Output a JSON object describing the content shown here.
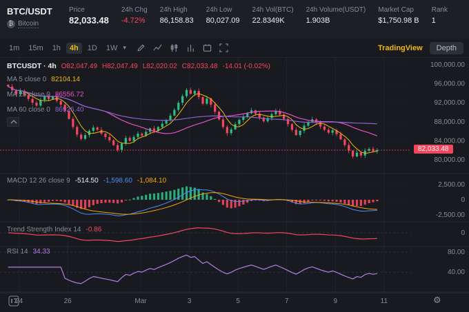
{
  "header": {
    "symbol": "BTC/USDT",
    "coin_name": "Bitcoin",
    "coin_icon": "₿",
    "stats": [
      {
        "label": "Price",
        "value": "82,033.48",
        "type": "price"
      },
      {
        "label": "24h Chg",
        "value": "-4.72%",
        "type": "down"
      },
      {
        "label": "24h High",
        "value": "86,158.83"
      },
      {
        "label": "24h Low",
        "value": "80,027.09"
      },
      {
        "label": "24h Vol(BTC)",
        "value": "22.8349K"
      },
      {
        "label": "24h Volume(USDT)",
        "value": "1.903B"
      },
      {
        "label": "Market Cap",
        "value": "$1,750.98 B"
      },
      {
        "label": "Rank",
        "value": "1"
      }
    ]
  },
  "icons": {
    "caret_down": "▾",
    "gear": "⚙"
  },
  "toolbar": {
    "intervals": [
      {
        "label": "1m",
        "selected": false
      },
      {
        "label": "15m",
        "selected": false
      },
      {
        "label": "1h",
        "selected": false
      },
      {
        "label": "4h",
        "selected": true
      },
      {
        "label": "1D",
        "selected": false
      },
      {
        "label": "1W",
        "selected": false
      }
    ],
    "icon_names": [
      "edit-icon",
      "line-chart-icon",
      "candlestick-chart-icon",
      "bar-chart-icon",
      "calendar-icon",
      "fullscreen-icon"
    ],
    "tabs": [
      {
        "label": "TradingView",
        "selected": true
      },
      {
        "label": "Depth",
        "selected": false
      }
    ]
  },
  "legend": {
    "symbol_tf": "BTCUSDT · 4h",
    "open": "O82,047.49",
    "high": "H82,047.49",
    "low": "L82,020.02",
    "close": "C82,033.48",
    "change": "-14.01 (-0.02%)",
    "ma5_label": "MA 5 close 0",
    "ma5_value": "82104.14",
    "ma25_label": "MA 25 close 0",
    "ma25_value": "86556.72",
    "ma60_label": "MA 60 close 0",
    "ma60_value": "86926.40"
  },
  "panels": {
    "macd": {
      "label": "MACD 12 26 close 9",
      "v1": "-514.50",
      "v2": "-1,598.60",
      "v3": "-1,084.10",
      "ticks": [
        {
          "label": "2,500.00",
          "value": 2500
        },
        {
          "label": "0",
          "value": 0
        },
        {
          "label": "-2,500.00",
          "value": -2500
        }
      ]
    },
    "tsi": {
      "label": "Trend Strength Index 14",
      "value": "-0.86",
      "ticks": [
        {
          "label": "0",
          "value": 0
        }
      ]
    },
    "rsi": {
      "label": "RSI 14",
      "value": "34.33",
      "ticks": [
        {
          "label": "80.00",
          "value": 80
        },
        {
          "label": "40.00",
          "value": 40
        }
      ]
    }
  },
  "price_axis": {
    "ticks": [
      {
        "label": "100,000.00",
        "value": 100000
      },
      {
        "label": "96,000.00",
        "value": 96000
      },
      {
        "label": "92,000.00",
        "value": 92000
      },
      {
        "label": "88,000.00",
        "value": 88000
      },
      {
        "label": "84,000.00",
        "value": 84000
      },
      {
        "label": "80,000.00",
        "value": 80000
      }
    ],
    "current": {
      "label": "82,033.48",
      "value": 82033.48
    }
  },
  "time_axis": {
    "ticks": [
      {
        "label": "24",
        "i": 3
      },
      {
        "label": "26",
        "i": 15
      },
      {
        "label": "Mar",
        "i": 33
      },
      {
        "label": "3",
        "i": 45
      },
      {
        "label": "5",
        "i": 57
      },
      {
        "label": "7",
        "i": 69
      },
      {
        "label": "9",
        "i": 81
      },
      {
        "label": "11",
        "i": 93
      }
    ]
  },
  "chart_data": {
    "type": "candlestick",
    "interval": "4h",
    "last_price": 82033.48,
    "ylim": [
      78800,
      101200
    ],
    "ma_periods": [
      5,
      25,
      60
    ],
    "macd_params": [
      12,
      26,
      9
    ],
    "rsi_period": 14,
    "closes": [
      95400,
      94600,
      93800,
      94500,
      93600,
      92800,
      92000,
      91400,
      92600,
      93400,
      92800,
      93300,
      92400,
      91600,
      90300,
      88600,
      86900,
      85300,
      84400,
      85200,
      86100,
      86800,
      86300,
      85500,
      84800,
      84100,
      83100,
      82100,
      83400,
      84600,
      84000,
      84800,
      85500,
      85100,
      85900,
      86600,
      86100,
      86900,
      87600,
      88400,
      89300,
      90500,
      92000,
      93400,
      94700,
      93900,
      94500,
      93200,
      91800,
      92900,
      91600,
      90100,
      88500,
      86900,
      85600,
      86400,
      87500,
      88400,
      89100,
      89800,
      90400,
      89700,
      88900,
      88100,
      88800,
      89600,
      90300,
      89500,
      88600,
      87500,
      86300,
      85200,
      86100,
      87200,
      88000,
      88500,
      87800,
      87000,
      86300,
      85700,
      86200,
      85400,
      84300,
      83100,
      81900,
      80700,
      81500,
      80900,
      81900,
      82300,
      81800,
      82033
    ]
  },
  "colors": {
    "up": "#2EBD85",
    "down": "#F6465D",
    "accent": "#F0B90B",
    "ma5": "#F0B90B",
    "ma25": "#E750C9",
    "ma60": "#8A63D2",
    "dif": "#4E8EF7",
    "dea": "#F7A600",
    "rsi": "#B57EE6",
    "text_secondary": "#848E9C"
  }
}
